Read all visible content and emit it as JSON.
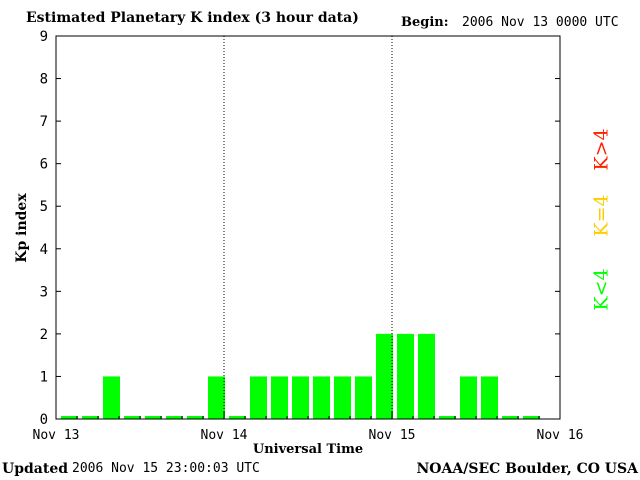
{
  "header": {
    "title": "Estimated Planetary K index (3 hour data)",
    "begin_label": "Begin:",
    "begin_value": "2006 Nov 13 0000 UTC"
  },
  "footer": {
    "updated_label": "Updated",
    "updated_value": "2006 Nov 15 23:00:03 UTC",
    "credit": "NOAA/SEC Boulder, CO USA"
  },
  "legend": {
    "above": {
      "label": "K>4",
      "color": "#ff2200"
    },
    "equal": {
      "label": "K=4",
      "color": "#ffcc00"
    },
    "below": {
      "label": "K<4",
      "color": "#00ff00"
    }
  },
  "chart_data": {
    "type": "bar",
    "ylabel": "Kp index",
    "xlabel": "Universal Time",
    "ylim": [
      0,
      9
    ],
    "yticks": [
      "0",
      "1",
      "2",
      "3",
      "4",
      "5",
      "6",
      "7",
      "8",
      "9"
    ],
    "xticks": [
      "Nov 13",
      "Nov 14",
      "Nov 15",
      "Nov 16"
    ],
    "day_separators": [
      "Nov 14",
      "Nov 15"
    ],
    "bar_color": "#00ff00",
    "interval_hours": 3,
    "values": [
      0,
      0,
      1,
      0,
      0,
      0,
      0,
      1,
      0,
      1,
      1,
      1,
      1,
      1,
      1,
      2,
      2,
      2,
      0,
      1,
      1,
      0,
      0
    ]
  }
}
